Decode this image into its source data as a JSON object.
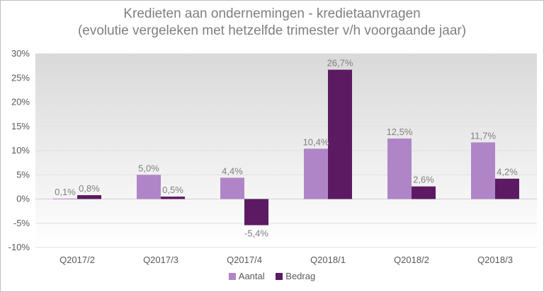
{
  "chart_data": {
    "type": "bar",
    "title": "Kredieten aan ondernemingen - kredietaanvragen",
    "subtitle": "(evolutie vergeleken met hetzelfde trimester v/h voorgaande jaar)",
    "categories": [
      "Q2017/2",
      "Q2017/3",
      "Q2017/4",
      "Q2018/1",
      "Q2018/2",
      "Q2018/3"
    ],
    "series": [
      {
        "name": "Aantal",
        "color": "#b085c8",
        "values": [
          0.1,
          5.0,
          4.4,
          10.4,
          12.5,
          11.7
        ],
        "labels": [
          "0,1%",
          "5,0%",
          "4,4%",
          "10,4%",
          "12,5%",
          "11,7%"
        ]
      },
      {
        "name": "Bedrag",
        "color": "#5c1a63",
        "values": [
          0.8,
          0.5,
          -5.4,
          26.7,
          2.6,
          4.2
        ],
        "labels": [
          "0,8%",
          "0,5%",
          "-5,4%",
          "26,7%",
          "2,6%",
          "4,2%"
        ]
      }
    ],
    "ylim": [
      -10,
      30
    ],
    "yticks": [
      -10,
      -5,
      0,
      5,
      10,
      15,
      20,
      25,
      30
    ],
    "ytick_labels": [
      "-10%",
      "-5%",
      "0%",
      "5%",
      "10%",
      "15%",
      "20%",
      "25%",
      "30%"
    ],
    "grid": true,
    "legend_position": "bottom"
  }
}
